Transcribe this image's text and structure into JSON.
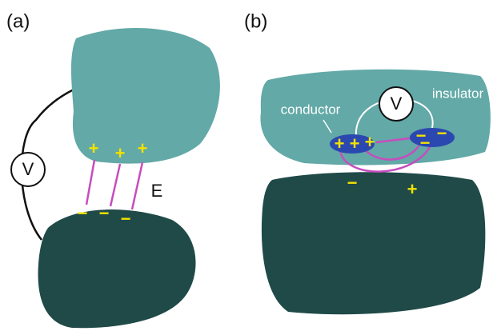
{
  "panel_a": {
    "label": "(a)",
    "voltmeter": "V",
    "field": "E",
    "charges": [
      "+",
      "+",
      "+",
      "−",
      "−",
      "−"
    ]
  },
  "panel_b": {
    "label": "(b)",
    "voltmeter": "V",
    "conductor": "conductor",
    "insulator": "insulator",
    "charges": [
      "+",
      "+",
      "+",
      "−",
      "−",
      "−",
      "−",
      "+"
    ]
  }
}
